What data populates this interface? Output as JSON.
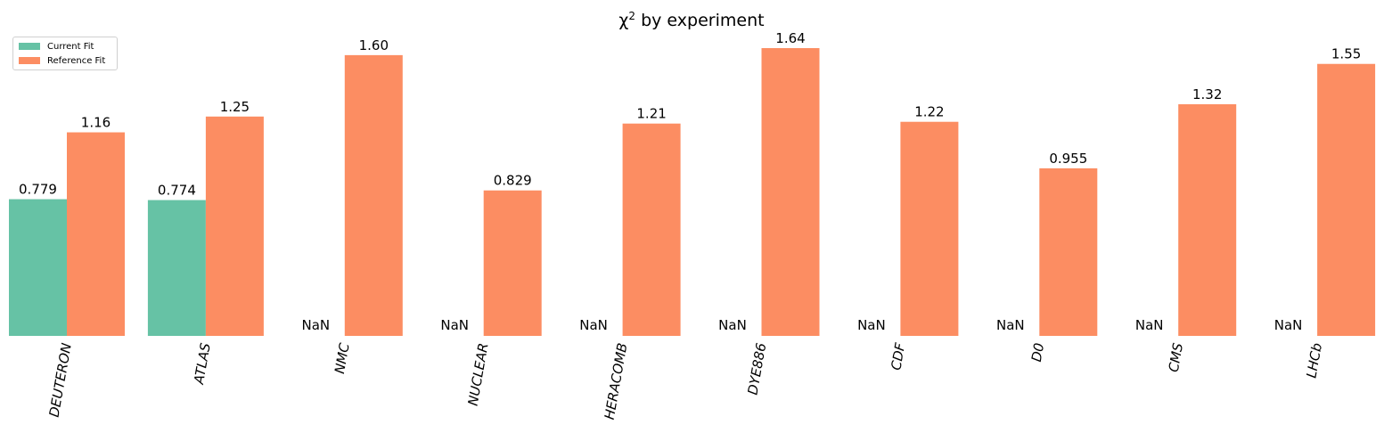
{
  "chart_data": {
    "type": "bar",
    "title": "χ",
    "title_superscript": "2",
    "title_rest": " by experiment",
    "categories": [
      "DEUTERON",
      "ATLAS",
      "NMC",
      "NUCLEAR",
      "HERACOMB",
      "DYE886",
      "CDF",
      "D0",
      "CMS",
      "LHCb"
    ],
    "series": [
      {
        "name": "Current Fit",
        "color": "#66c2a5",
        "values": [
          0.779,
          0.774,
          null,
          null,
          null,
          null,
          null,
          null,
          null,
          null
        ],
        "labels": [
          "0.779",
          "0.774",
          "NaN",
          "NaN",
          "NaN",
          "NaN",
          "NaN",
          "NaN",
          "NaN",
          "NaN"
        ]
      },
      {
        "name": "Reference Fit",
        "color": "#fc8d62",
        "values": [
          1.16,
          1.25,
          1.6,
          0.829,
          1.21,
          1.64,
          1.22,
          0.955,
          1.32,
          1.55
        ],
        "labels": [
          "1.16",
          "1.25",
          "1.60",
          "0.829",
          "1.21",
          "1.64",
          "1.22",
          "0.955",
          "1.32",
          "1.55"
        ]
      }
    ],
    "ylim": [
      0,
      1.64
    ],
    "legend_position": "top-left",
    "grid": false,
    "xtick_rotation": 80
  }
}
